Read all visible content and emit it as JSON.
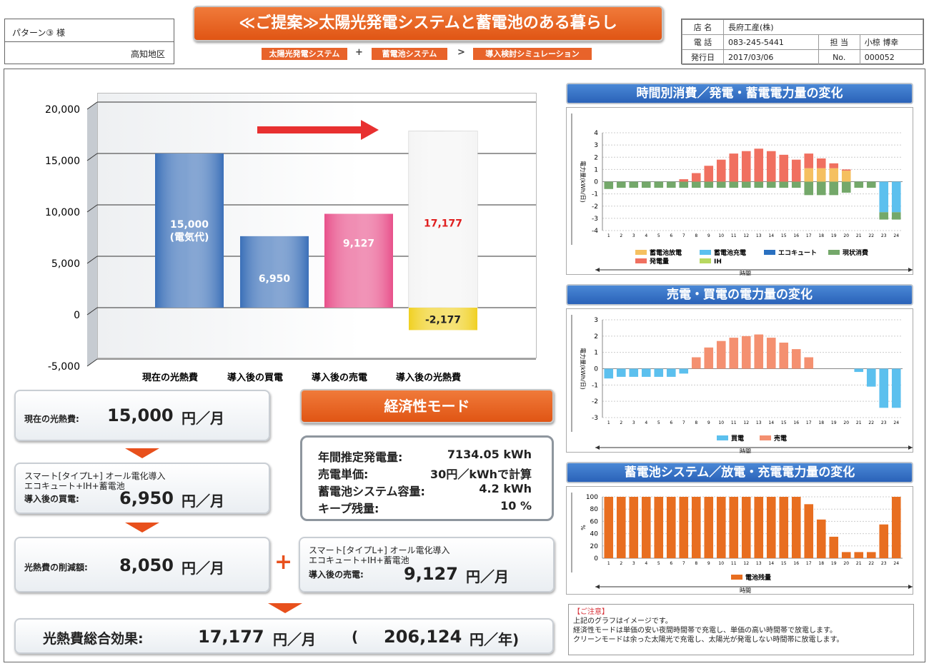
{
  "customer": {
    "name": "パターン③ 様",
    "region": "高知地区"
  },
  "title": "≪ご提案≫太陽光発電システムと蓄電池のある暮らし",
  "steps": [
    "太陽光発電システム",
    "蓄電池システム",
    "導入検討シミュレーション"
  ],
  "step_ops": [
    "+",
    ">"
  ],
  "store": {
    "store_label": "店 名",
    "store_name": "長府工産(株)",
    "tel_label": "電 話",
    "tel": "083-245-5441",
    "staff_label": "担 当",
    "staff": "小椋 博幸",
    "date_label": "発行日",
    "date": "2017/03/06",
    "no_label": "No.",
    "no": "000052"
  },
  "summary": {
    "current_label": "現在の光熱費:",
    "current_value": "15,000",
    "unit_month": "円／月",
    "plan_line1": "スマート[タイプL+] オール電化導入",
    "plan_line2": "エコキュート+IH+蓄電池",
    "buy_label": "導入後の買電:",
    "buy_value": "6,950",
    "reduction_label": "光熱費の削減額:",
    "reduction_value": "8,050",
    "plus": "+",
    "sell_label": "導入後の売電:",
    "sell_value": "9,127",
    "total_label": "光熱費総合効果:",
    "total_value": "17,177",
    "total_year_value": "206,124",
    "unit_year": "円／年)",
    "paren_open": "("
  },
  "economy": {
    "title": "経済性モード",
    "rows": [
      {
        "k": "年間推定発電量:",
        "v": "7134.05 kWh"
      },
      {
        "k": "売電単価:",
        "v": "30円／kWhで計算"
      },
      {
        "k": "蓄電池システム容量:",
        "v": "4.2 kWh"
      },
      {
        "k": "キープ残量:",
        "v": "10 %"
      }
    ]
  },
  "notes": {
    "title": "【ご注意】",
    "lines": [
      "上記のグラフはイメージです。",
      "経済性モードは単価の安い夜間時間帯で充電し、単価の高い時間帯で放電します。",
      "クリーンモードは余った太陽光で充電し、太陽光が発電しない時間帯に放電します。"
    ]
  },
  "chart_data": [
    {
      "type": "bar",
      "ylim": [
        -5000,
        20000
      ],
      "yticks": [
        "20,000",
        "15,000",
        "10,000",
        "5,000",
        "0",
        "-5,000"
      ],
      "categories": [
        "現在の光熱費",
        "導入後の買電",
        "導入後の売電",
        "導入後の光熱費"
      ],
      "values": [
        15000,
        6950,
        9127,
        17177
      ],
      "labels": [
        "15,000",
        "6,950",
        "9,127",
        "17,177"
      ],
      "label_extra": "(電気代)",
      "negative_value": -2177,
      "negative_label": "-2,177",
      "colors": [
        "#3a6fb8",
        "#3a6fb8",
        "#e8508a",
        "#f4f4f4"
      ],
      "negative_color": "#f0d020"
    },
    {
      "type": "bar",
      "title": "時間別消費／発電・蓄電電力量の変化",
      "ylabel": "電力量(kWh/日)",
      "xlabel": "時間",
      "ylim": [
        -4,
        4
      ],
      "yticks": [
        "4",
        "3",
        "2",
        "1",
        "0",
        "-1",
        "-2",
        "-3",
        "-4"
      ],
      "x": [
        "1",
        "2",
        "3",
        "4",
        "5",
        "6",
        "7",
        "8",
        "9",
        "10",
        "11",
        "12",
        "13",
        "14",
        "15",
        "16",
        "17",
        "18",
        "19",
        "20",
        "21",
        "22",
        "23",
        "24"
      ],
      "series": [
        {
          "name": "蓄電池放電",
          "color": "#f5c060",
          "values": [
            0,
            0,
            0,
            0,
            0,
            0,
            0,
            0,
            0,
            0,
            0,
            0,
            0,
            0,
            0,
            0,
            1.1,
            1.1,
            1.1,
            0.9,
            0,
            0,
            0,
            0
          ]
        },
        {
          "name": "蓄電池充電",
          "color": "#5cc0ee",
          "values": [
            0,
            0,
            0,
            0,
            0,
            0,
            0,
            0,
            0,
            0,
            0,
            0,
            0,
            0,
            0,
            0,
            0,
            0,
            0,
            0,
            0,
            0,
            -2.5,
            -2.5
          ]
        },
        {
          "name": "エコキュート",
          "color": "#2a70c0",
          "values": [
            0,
            0,
            0,
            0,
            0,
            0,
            0,
            0,
            0,
            0,
            0,
            0,
            0,
            0,
            0,
            0,
            0,
            0,
            0,
            0,
            0,
            0,
            0,
            0
          ]
        },
        {
          "name": "現状消費",
          "color": "#74a86a",
          "values": [
            -0.6,
            -0.5,
            -0.5,
            -0.5,
            -0.5,
            -0.5,
            -0.5,
            -0.5,
            -0.5,
            -0.5,
            -0.5,
            -0.5,
            -0.5,
            -0.5,
            -0.5,
            -0.5,
            -1.1,
            -1.1,
            -1.1,
            -0.9,
            -0.5,
            -0.5,
            -0.6,
            -0.6
          ]
        },
        {
          "name": "発電量",
          "color": "#f07060",
          "values": [
            0,
            0,
            0,
            0,
            0,
            0,
            0.2,
            0.7,
            1.3,
            1.8,
            2.3,
            2.5,
            2.7,
            2.5,
            2.2,
            1.8,
            1.2,
            0.8,
            0.4,
            0.1,
            0,
            0,
            0,
            0
          ]
        },
        {
          "name": "IH",
          "color": "#b8d860",
          "values": [
            0,
            0,
            0,
            0,
            0,
            0,
            0,
            0,
            0,
            0,
            0,
            0,
            0,
            0,
            0,
            0,
            0,
            0,
            0,
            0,
            0,
            0,
            0,
            0
          ]
        }
      ]
    },
    {
      "type": "bar",
      "title": "売電・買電の電力量の変化",
      "ylabel": "電力量(kWh/日)",
      "xlabel": "時間",
      "ylim": [
        -3,
        3
      ],
      "yticks": [
        "3",
        "2",
        "1",
        "0",
        "-1",
        "-2",
        "-3"
      ],
      "x": [
        "1",
        "2",
        "3",
        "4",
        "5",
        "6",
        "7",
        "8",
        "9",
        "10",
        "11",
        "12",
        "13",
        "14",
        "15",
        "16",
        "17",
        "18",
        "19",
        "20",
        "21",
        "22",
        "23",
        "24"
      ],
      "series": [
        {
          "name": "買電",
          "color": "#5cc0ee",
          "values": [
            -0.6,
            -0.5,
            -0.5,
            -0.5,
            -0.5,
            -0.5,
            -0.3,
            0,
            0,
            0,
            0,
            0,
            0,
            0,
            0,
            0,
            0,
            0,
            0,
            0,
            -0.2,
            -1.1,
            -2.4,
            -2.4
          ]
        },
        {
          "name": "売電",
          "color": "#f49070",
          "values": [
            0,
            0,
            0,
            0,
            0,
            0,
            0,
            0.7,
            1.3,
            1.7,
            1.9,
            2.0,
            2.1,
            1.9,
            1.6,
            1.2,
            0.7,
            0,
            0,
            0,
            0,
            0,
            0,
            0
          ]
        }
      ]
    },
    {
      "type": "bar",
      "title": "蓄電池システム／放電・充電電力量の変化",
      "ylabel": "%",
      "xlabel": "時間",
      "ylim": [
        0,
        100
      ],
      "yticks": [
        "100",
        "80",
        "60",
        "40",
        "20",
        "0"
      ],
      "x": [
        "1",
        "2",
        "3",
        "4",
        "5",
        "6",
        "7",
        "8",
        "9",
        "10",
        "11",
        "12",
        "13",
        "14",
        "15",
        "16",
        "17",
        "18",
        "19",
        "20",
        "21",
        "22",
        "23",
        "24"
      ],
      "series": [
        {
          "name": "電池残量",
          "color": "#e86e20",
          "values": [
            100,
            100,
            100,
            100,
            100,
            100,
            100,
            100,
            100,
            100,
            100,
            100,
            100,
            100,
            100,
            100,
            88,
            63,
            35,
            10,
            10,
            10,
            55,
            100
          ]
        }
      ]
    }
  ]
}
